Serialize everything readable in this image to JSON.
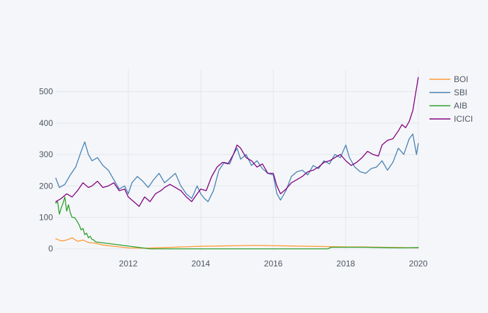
{
  "chart_data": {
    "type": "line",
    "title": "",
    "xlabel": "",
    "ylabel": "",
    "xlim": [
      2010.0,
      2020.0
    ],
    "ylim": [
      -5,
      570
    ],
    "grid": true,
    "legend_position": "top-right",
    "x_ticks": [
      {
        "value": 2012,
        "label": "2012"
      },
      {
        "value": 2014,
        "label": "2014"
      },
      {
        "value": 2016,
        "label": "2016"
      },
      {
        "value": 2018,
        "label": "2018"
      },
      {
        "value": 2020,
        "label": "2020"
      }
    ],
    "y_ticks": [
      {
        "value": 0,
        "label": "0"
      },
      {
        "value": 100,
        "label": "100"
      },
      {
        "value": 200,
        "label": "200"
      },
      {
        "value": 300,
        "label": "300"
      },
      {
        "value": 400,
        "label": "400"
      },
      {
        "value": 500,
        "label": "500"
      }
    ],
    "series": [
      {
        "name": "BOI",
        "color": "#ff9933",
        "x": [
          2010.0,
          2010.15,
          2010.3,
          2010.45,
          2010.6,
          2010.75,
          2010.9,
          2011.1,
          2011.3,
          2011.6,
          2012.0,
          2012.5,
          2013.0,
          2013.5,
          2014.0,
          2014.5,
          2015.0,
          2015.5,
          2016.0,
          2016.5,
          2017.0,
          2017.5,
          2018.0,
          2018.5,
          2019.0,
          2019.5,
          2020.0
        ],
        "y": [
          32,
          25,
          28,
          35,
          24,
          28,
          20,
          18,
          12,
          8,
          3,
          2,
          4,
          6,
          8,
          9,
          10,
          11,
          10,
          9,
          8,
          7,
          6,
          6,
          5,
          4,
          3
        ]
      },
      {
        "name": "SBI",
        "color": "#4682b4",
        "x": [
          2010.0,
          2010.1,
          2010.25,
          2010.4,
          2010.55,
          2010.7,
          2010.8,
          2010.9,
          2011.0,
          2011.15,
          2011.3,
          2011.45,
          2011.6,
          2011.75,
          2011.9,
          2012.0,
          2012.1,
          2012.25,
          2012.4,
          2012.55,
          2012.7,
          2012.85,
          2013.0,
          2013.15,
          2013.3,
          2013.45,
          2013.6,
          2013.75,
          2013.9,
          2014.0,
          2014.1,
          2014.2,
          2014.35,
          2014.5,
          2014.65,
          2014.8,
          2014.9,
          2015.0,
          2015.1,
          2015.25,
          2015.4,
          2015.55,
          2015.7,
          2015.85,
          2016.0,
          2016.1,
          2016.2,
          2016.35,
          2016.5,
          2016.65,
          2016.8,
          2016.95,
          2017.1,
          2017.25,
          2017.4,
          2017.55,
          2017.7,
          2017.85,
          2018.0,
          2018.1,
          2018.25,
          2018.4,
          2018.55,
          2018.7,
          2018.85,
          2019.0,
          2019.15,
          2019.3,
          2019.45,
          2019.6,
          2019.75,
          2019.85,
          2019.95,
          2020.0
        ],
        "y": [
          225,
          195,
          205,
          235,
          260,
          310,
          340,
          300,
          280,
          290,
          265,
          250,
          220,
          190,
          200,
          175,
          210,
          230,
          215,
          195,
          220,
          240,
          210,
          225,
          240,
          200,
          175,
          160,
          200,
          175,
          160,
          150,
          185,
          250,
          275,
          270,
          300,
          320,
          285,
          300,
          265,
          280,
          255,
          240,
          235,
          175,
          155,
          185,
          230,
          245,
          250,
          235,
          265,
          255,
          280,
          270,
          300,
          290,
          330,
          290,
          260,
          245,
          240,
          255,
          260,
          280,
          250,
          275,
          320,
          300,
          350,
          365,
          300,
          335
        ]
      },
      {
        "name": "AIB",
        "color": "#2ca02c",
        "x": [
          2010.0,
          2010.05,
          2010.1,
          2010.15,
          2010.2,
          2010.25,
          2010.3,
          2010.35,
          2010.4,
          2010.45,
          2010.5,
          2010.55,
          2010.6,
          2010.65,
          2010.7,
          2010.75,
          2010.8,
          2010.85,
          2010.9,
          2010.95,
          2011.0,
          2011.05,
          2011.1,
          2012.6,
          2013.5,
          2014.5,
          2015.5,
          2016.5,
          2017.0,
          2017.5,
          2017.6,
          2018.0,
          2018.5,
          2019.0,
          2019.5,
          2020.0
        ],
        "y": [
          145,
          150,
          110,
          130,
          145,
          165,
          120,
          140,
          115,
          100,
          100,
          95,
          85,
          75,
          60,
          65,
          45,
          50,
          35,
          40,
          30,
          28,
          22,
          0,
          0,
          0,
          0,
          0,
          0,
          0,
          5,
          5,
          5,
          4,
          3,
          4
        ]
      },
      {
        "name": "ICICI",
        "color": "#800080",
        "x": [
          2010.0,
          2010.15,
          2010.3,
          2010.45,
          2010.6,
          2010.75,
          2010.9,
          2011.0,
          2011.15,
          2011.3,
          2011.45,
          2011.6,
          2011.75,
          2011.9,
          2012.0,
          2012.15,
          2012.3,
          2012.45,
          2012.6,
          2012.75,
          2012.9,
          2013.0,
          2013.15,
          2013.3,
          2013.45,
          2013.6,
          2013.75,
          2013.9,
          2014.0,
          2014.15,
          2014.3,
          2014.45,
          2014.6,
          2014.75,
          2014.9,
          2015.0,
          2015.1,
          2015.25,
          2015.4,
          2015.55,
          2015.7,
          2015.85,
          2016.0,
          2016.1,
          2016.2,
          2016.35,
          2016.5,
          2016.65,
          2016.8,
          2016.95,
          2017.1,
          2017.25,
          2017.4,
          2017.55,
          2017.7,
          2017.85,
          2018.0,
          2018.15,
          2018.3,
          2018.45,
          2018.6,
          2018.75,
          2018.9,
          2019.0,
          2019.15,
          2019.3,
          2019.45,
          2019.55,
          2019.65,
          2019.75,
          2019.85,
          2019.92,
          2020.0
        ],
        "y": [
          150,
          160,
          175,
          165,
          185,
          210,
          195,
          200,
          215,
          195,
          200,
          210,
          185,
          190,
          165,
          150,
          135,
          165,
          150,
          175,
          185,
          195,
          205,
          195,
          185,
          165,
          150,
          175,
          190,
          185,
          230,
          260,
          275,
          270,
          300,
          330,
          320,
          290,
          280,
          260,
          270,
          240,
          240,
          200,
          175,
          190,
          210,
          220,
          230,
          245,
          250,
          260,
          275,
          280,
          290,
          300,
          280,
          265,
          275,
          290,
          310,
          300,
          295,
          330,
          345,
          350,
          375,
          395,
          385,
          405,
          440,
          490,
          545
        ]
      }
    ]
  }
}
